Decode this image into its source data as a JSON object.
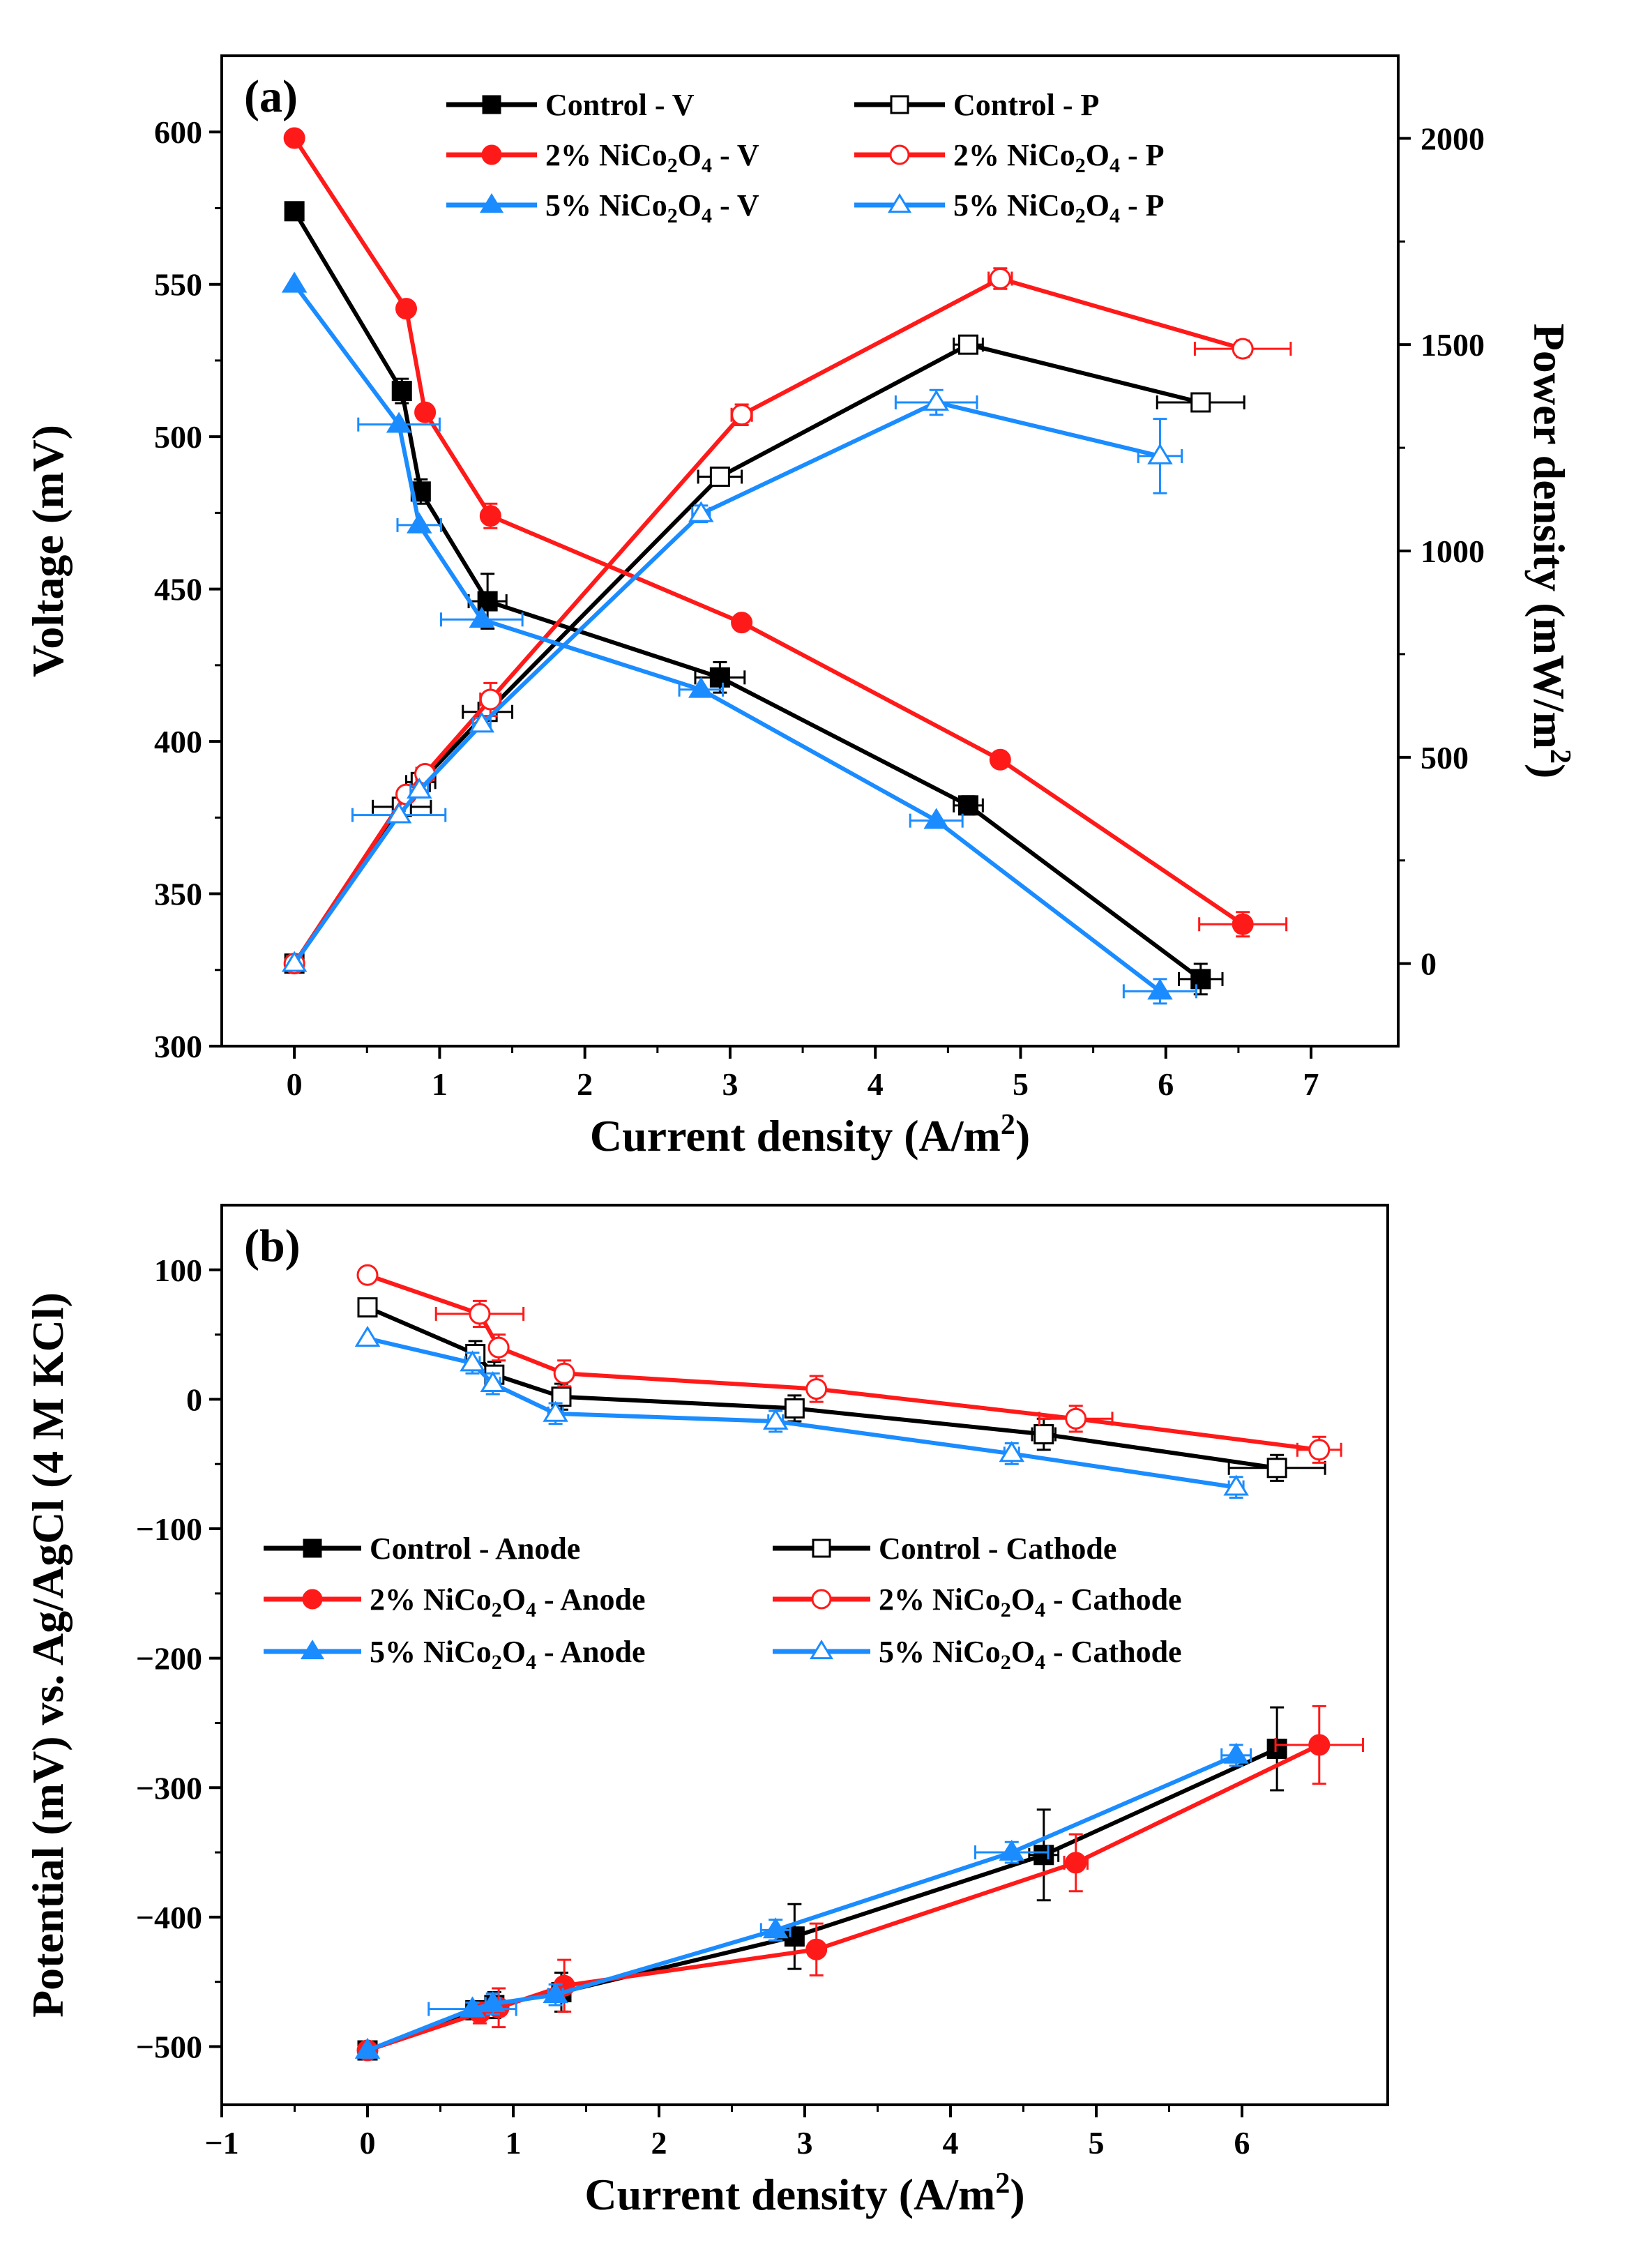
{
  "chart_data": [
    {
      "type": "line",
      "panel_label": "(a)",
      "xlabel": "Current density (A/m",
      "xlabel_sup": "2",
      "xlabel_end": ")",
      "ylabel": "Voltage (mV)",
      "y2label": "Power density (mW/m",
      "y2label_sup": "2",
      "y2label_end": ")",
      "xlim": [
        -0.5,
        7.6
      ],
      "ylim": [
        300,
        625
      ],
      "y2lim": [
        -200,
        2200
      ],
      "xticks": [
        "0",
        "1",
        "2",
        "3",
        "4",
        "5",
        "6",
        "7"
      ],
      "yticks": [
        "300",
        "350",
        "400",
        "450",
        "500",
        "550",
        "600"
      ],
      "y2ticks": [
        "0",
        "500",
        "1000",
        "1500",
        "2000"
      ],
      "grid": false,
      "legend_position": "top",
      "series": [
        {
          "name": "Control - V",
          "legend": {
            "pre": "Control - V",
            "sub": "",
            "mid": "",
            "sub2": "",
            "post": ""
          },
          "color": "#000000",
          "marker": "square",
          "filled": true,
          "axis": "left",
          "x": [
            0,
            0.74,
            0.87,
            1.33,
            2.93,
            4.64,
            6.24
          ],
          "y": [
            574,
            515,
            482,
            446,
            421,
            379,
            322
          ],
          "xerr": [
            0,
            0.05,
            0.06,
            0.13,
            0.17,
            0.1,
            0.15
          ],
          "yerr": [
            0,
            4,
            4,
            9,
            5,
            3,
            5
          ]
        },
        {
          "name": "Control - P",
          "legend": {
            "pre": "Control - P",
            "sub": "",
            "mid": "",
            "sub2": "",
            "post": ""
          },
          "color": "#000000",
          "marker": "square",
          "filled": false,
          "axis": "right",
          "x": [
            0,
            0.74,
            0.87,
            1.33,
            2.93,
            4.64,
            6.24
          ],
          "y": [
            0,
            380,
            440,
            610,
            1180,
            1500,
            1360
          ],
          "xerr": [
            0,
            0.2,
            0.1,
            0.17,
            0.15,
            0.1,
            0.3
          ],
          "yerr": [
            0,
            10,
            12,
            15,
            20,
            20,
            15
          ]
        },
        {
          "name": "2% NiCo2O4 - V",
          "legend": {
            "pre": "2% NiCo",
            "sub": "2",
            "mid": "O",
            "sub2": "4",
            "post": " - V"
          },
          "color": "#ff1a1a",
          "marker": "circle",
          "filled": true,
          "axis": "left",
          "x": [
            0,
            0.77,
            0.9,
            1.35,
            3.08,
            4.86,
            6.53
          ],
          "y": [
            598,
            542,
            508,
            474,
            439,
            394,
            340
          ],
          "xerr": [
            0,
            0,
            0,
            0,
            0,
            0,
            0.3
          ],
          "yerr": [
            0,
            0,
            0,
            4,
            0,
            0,
            4
          ]
        },
        {
          "name": "2% NiCo2O4 - P",
          "legend": {
            "pre": "2% NiCo",
            "sub": "2",
            "mid": "O",
            "sub2": "4",
            "post": " - P"
          },
          "color": "#ff1a1a",
          "marker": "circle",
          "filled": false,
          "axis": "right",
          "x": [
            0,
            0.77,
            0.9,
            1.35,
            3.08,
            4.86,
            6.53
          ],
          "y": [
            0,
            410,
            460,
            640,
            1330,
            1660,
            1490
          ],
          "xerr": [
            0,
            0.05,
            0.06,
            0.07,
            0.07,
            0.08,
            0.33
          ],
          "yerr": [
            0,
            10,
            12,
            40,
            25,
            25,
            20
          ]
        },
        {
          "name": "5% NiCo2O4 - V",
          "legend": {
            "pre": "5% NiCo",
            "sub": "2",
            "mid": "O",
            "sub2": "4",
            "post": " - V"
          },
          "color": "#1a8cff",
          "marker": "triangle",
          "filled": true,
          "axis": "left",
          "x": [
            0,
            0.72,
            0.86,
            1.29,
            2.8,
            4.42,
            5.96
          ],
          "y": [
            550,
            504,
            471,
            440,
            417,
            374,
            318
          ],
          "xerr": [
            0,
            0.28,
            0.15,
            0.28,
            0.15,
            0.18,
            0.25
          ],
          "yerr": [
            0,
            0,
            0,
            0,
            0,
            0,
            4
          ]
        },
        {
          "name": "5% NiCo2O4 - P",
          "legend": {
            "pre": "5% NiCo",
            "sub": "2",
            "mid": "O",
            "sub2": "4",
            "post": " - P"
          },
          "color": "#1a8cff",
          "marker": "triangle",
          "filled": false,
          "axis": "right",
          "x": [
            0,
            0.72,
            0.86,
            1.29,
            2.8,
            4.42,
            5.96
          ],
          "y": [
            0,
            360,
            420,
            580,
            1090,
            1360,
            1230
          ],
          "xerr": [
            0,
            0.32,
            0.06,
            0.06,
            0.06,
            0.28,
            0.15
          ],
          "yerr": [
            0,
            10,
            10,
            15,
            20,
            30,
            90
          ]
        }
      ]
    },
    {
      "type": "line",
      "panel_label": "(b)",
      "xlabel": "Current density (A/m",
      "xlabel_sup": "2",
      "xlabel_end": ")",
      "ylabel": "Potential (mV) vs. Ag/AgCl (4 M KCl)",
      "xlim": [
        -1,
        7
      ],
      "ylim": [
        -545,
        150
      ],
      "xticks": [
        "−1",
        "0",
        "1",
        "2",
        "3",
        "4",
        "5",
        "6"
      ],
      "yticks": [
        "−500",
        "−400",
        "−300",
        "−200",
        "−100",
        "0",
        "100"
      ],
      "grid": false,
      "legend_position": "center",
      "series": [
        {
          "name": "Control - Anode",
          "legend": {
            "pre": "Control - Anode",
            "sub": "",
            "mid": "",
            "sub2": "",
            "post": ""
          },
          "color": "#000000",
          "marker": "square",
          "filled": true,
          "x": [
            0,
            0.74,
            0.87,
            1.33,
            2.93,
            4.64,
            6.24
          ],
          "y": [
            -503,
            -472,
            -468,
            -458,
            -415,
            -352,
            -270
          ],
          "xerr": [
            0,
            0.05,
            0.05,
            0.05,
            0.05,
            0.1,
            0.05
          ],
          "yerr": [
            0,
            6,
            10,
            15,
            25,
            35,
            32
          ]
        },
        {
          "name": "Control - Cathode",
          "legend": {
            "pre": "Control - Cathode",
            "sub": "",
            "mid": "",
            "sub2": "",
            "post": ""
          },
          "color": "#000000",
          "marker": "square",
          "filled": false,
          "x": [
            0,
            0.74,
            0.87,
            1.33,
            2.93,
            4.64,
            6.24
          ],
          "y": [
            71,
            35,
            19,
            2,
            -7,
            -27,
            -53
          ],
          "xerr": [
            0,
            0.05,
            0.05,
            0.05,
            0.05,
            0.08,
            0.33
          ],
          "yerr": [
            0,
            10,
            10,
            10,
            10,
            12,
            10
          ]
        },
        {
          "name": "2% NiCo2O4 - Anode",
          "legend": {
            "pre": "2% NiCo",
            "sub": "2",
            "mid": "O",
            "sub2": "4",
            "post": " - Anode"
          },
          "color": "#ff1a1a",
          "marker": "circle",
          "filled": true,
          "x": [
            0,
            0.77,
            0.9,
            1.35,
            3.08,
            4.86,
            6.53
          ],
          "y": [
            -503,
            -474,
            -470,
            -453,
            -425,
            -358,
            -267
          ],
          "xerr": [
            0,
            0.05,
            0.05,
            0.05,
            0.05,
            0.08,
            0.3
          ],
          "yerr": [
            0,
            8,
            15,
            20,
            20,
            22,
            30
          ]
        },
        {
          "name": "2% NiCo2O4 - Cathode",
          "legend": {
            "pre": "2% NiCo",
            "sub": "2",
            "mid": "O",
            "sub2": "4",
            "post": " - Cathode"
          },
          "color": "#ff1a1a",
          "marker": "circle",
          "filled": false,
          "x": [
            0,
            0.77,
            0.9,
            1.35,
            3.08,
            4.86,
            6.53
          ],
          "y": [
            96,
            66,
            40,
            20,
            8,
            -15,
            -39
          ],
          "xerr": [
            0,
            0.3,
            0.05,
            0.05,
            0.05,
            0.25,
            0.15
          ],
          "yerr": [
            0,
            10,
            10,
            10,
            10,
            10,
            10
          ]
        },
        {
          "name": "5% NiCo2O4 - Anode",
          "legend": {
            "pre": "5% NiCo",
            "sub": "2",
            "mid": "O",
            "sub2": "4",
            "post": " - Anode"
          },
          "color": "#1a8cff",
          "marker": "triangle",
          "filled": true,
          "x": [
            0,
            0.72,
            0.86,
            1.29,
            2.8,
            4.42,
            5.96
          ],
          "y": [
            -503,
            -471,
            -467,
            -460,
            -410,
            -350,
            -275
          ],
          "xerr": [
            0,
            0.3,
            0.05,
            0.05,
            0.1,
            0.25,
            0.1
          ],
          "yerr": [
            0,
            5,
            8,
            8,
            8,
            8,
            8
          ]
        },
        {
          "name": "5% NiCo2O4 - Cathode",
          "legend": {
            "pre": "5% NiCo",
            "sub": "2",
            "mid": "O",
            "sub2": "4",
            "post": " - Cathode"
          },
          "color": "#1a8cff",
          "marker": "triangle",
          "filled": false,
          "x": [
            0,
            0.72,
            0.86,
            1.29,
            2.8,
            4.42,
            5.96
          ],
          "y": [
            47,
            28,
            12,
            -11,
            -17,
            -42,
            -68
          ],
          "xerr": [
            0,
            0.05,
            0.05,
            0.05,
            0.05,
            0.05,
            0.05
          ],
          "yerr": [
            0,
            8,
            8,
            8,
            8,
            8,
            8
          ]
        }
      ]
    }
  ]
}
